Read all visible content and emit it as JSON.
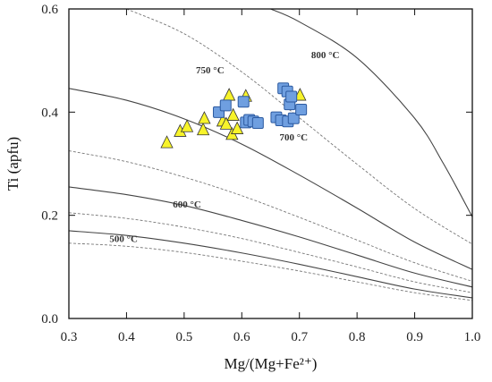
{
  "chart_data": {
    "type": "scatter",
    "xlabel": "Mg/(Mg+Fe²⁺)",
    "ylabel": "Ti (apfu)",
    "xlim": [
      0.3,
      1.0
    ],
    "ylim": [
      0.0,
      0.6
    ],
    "xticks": [
      "0.3",
      "0.4",
      "0.5",
      "0.6",
      "0.7",
      "0.8",
      "0.9",
      "1.0"
    ],
    "yticks": [
      "0.0",
      "0.2",
      "0.4",
      "0.6"
    ],
    "grid": false,
    "legend": "none",
    "isotherm_labels": [
      {
        "text": "800 °C",
        "x": 0.745,
        "y": 0.505
      },
      {
        "text": "750 °C",
        "x": 0.545,
        "y": 0.475
      },
      {
        "text": "700 °C",
        "x": 0.69,
        "y": 0.345
      },
      {
        "text": "600 °C",
        "x": 0.505,
        "y": 0.215
      },
      {
        "text": "500 °C",
        "x": 0.395,
        "y": 0.148
      }
    ],
    "series": [
      {
        "marker": "triangle",
        "color": "#f7f32a",
        "points": [
          [
            0.47,
            0.34
          ],
          [
            0.493,
            0.362
          ],
          [
            0.505,
            0.371
          ],
          [
            0.533,
            0.365
          ],
          [
            0.535,
            0.387
          ],
          [
            0.567,
            0.382
          ],
          [
            0.573,
            0.376
          ],
          [
            0.578,
            0.432
          ],
          [
            0.583,
            0.356
          ],
          [
            0.585,
            0.393
          ],
          [
            0.592,
            0.367
          ],
          [
            0.607,
            0.43
          ],
          [
            0.701,
            0.432
          ]
        ]
      },
      {
        "marker": "square",
        "color": "#6f9fe0",
        "points": [
          [
            0.56,
            0.4
          ],
          [
            0.572,
            0.413
          ],
          [
            0.603,
            0.42
          ],
          [
            0.607,
            0.38
          ],
          [
            0.613,
            0.385
          ],
          [
            0.62,
            0.382
          ],
          [
            0.628,
            0.379
          ],
          [
            0.66,
            0.39
          ],
          [
            0.668,
            0.384
          ],
          [
            0.672,
            0.446
          ],
          [
            0.679,
            0.44
          ],
          [
            0.68,
            0.382
          ],
          [
            0.683,
            0.415
          ],
          [
            0.686,
            0.43
          ],
          [
            0.69,
            0.388
          ],
          [
            0.703,
            0.405
          ]
        ]
      }
    ],
    "curves": [
      {
        "style": "dashed",
        "points": [
          [
            0.4,
            0.6
          ],
          [
            0.5,
            0.552
          ],
          [
            0.6,
            0.478
          ],
          [
            0.7,
            0.389
          ],
          [
            0.8,
            0.299
          ],
          [
            0.9,
            0.213
          ],
          [
            1.0,
            0.144
          ]
        ]
      },
      {
        "style": "solid",
        "points": [
          [
            0.65,
            0.6
          ],
          [
            0.7,
            0.575
          ],
          [
            0.8,
            0.505
          ],
          [
            0.9,
            0.388
          ],
          [
            0.95,
            0.3
          ],
          [
            1.0,
            0.197
          ]
        ]
      },
      {
        "style": "solid",
        "points": [
          [
            0.3,
            0.446
          ],
          [
            0.4,
            0.423
          ],
          [
            0.5,
            0.387
          ],
          [
            0.6,
            0.338
          ],
          [
            0.7,
            0.278
          ],
          [
            0.8,
            0.214
          ],
          [
            0.9,
            0.148
          ],
          [
            1.0,
            0.095
          ]
        ]
      },
      {
        "style": "dashed",
        "points": [
          [
            0.3,
            0.325
          ],
          [
            0.4,
            0.304
          ],
          [
            0.5,
            0.274
          ],
          [
            0.6,
            0.238
          ],
          [
            0.7,
            0.196
          ],
          [
            0.8,
            0.152
          ],
          [
            0.9,
            0.108
          ],
          [
            1.0,
            0.072
          ]
        ]
      },
      {
        "style": "solid",
        "points": [
          [
            0.3,
            0.255
          ],
          [
            0.4,
            0.24
          ],
          [
            0.5,
            0.219
          ],
          [
            0.6,
            0.19
          ],
          [
            0.7,
            0.158
          ],
          [
            0.8,
            0.123
          ],
          [
            0.9,
            0.088
          ],
          [
            1.0,
            0.061
          ]
        ]
      },
      {
        "style": "dashed",
        "points": [
          [
            0.3,
            0.205
          ],
          [
            0.4,
            0.194
          ],
          [
            0.5,
            0.177
          ],
          [
            0.6,
            0.155
          ],
          [
            0.7,
            0.128
          ],
          [
            0.8,
            0.1
          ],
          [
            0.9,
            0.071
          ],
          [
            1.0,
            0.05
          ]
        ]
      },
      {
        "style": "solid",
        "points": [
          [
            0.3,
            0.17
          ],
          [
            0.4,
            0.161
          ],
          [
            0.5,
            0.146
          ],
          [
            0.6,
            0.127
          ],
          [
            0.7,
            0.105
          ],
          [
            0.8,
            0.081
          ],
          [
            0.9,
            0.057
          ],
          [
            1.0,
            0.04
          ]
        ]
      },
      {
        "style": "dashed",
        "points": [
          [
            0.3,
            0.146
          ],
          [
            0.4,
            0.14
          ],
          [
            0.5,
            0.128
          ],
          [
            0.6,
            0.111
          ],
          [
            0.7,
            0.092
          ],
          [
            0.8,
            0.071
          ],
          [
            0.9,
            0.05
          ],
          [
            1.0,
            0.035
          ]
        ]
      }
    ]
  }
}
